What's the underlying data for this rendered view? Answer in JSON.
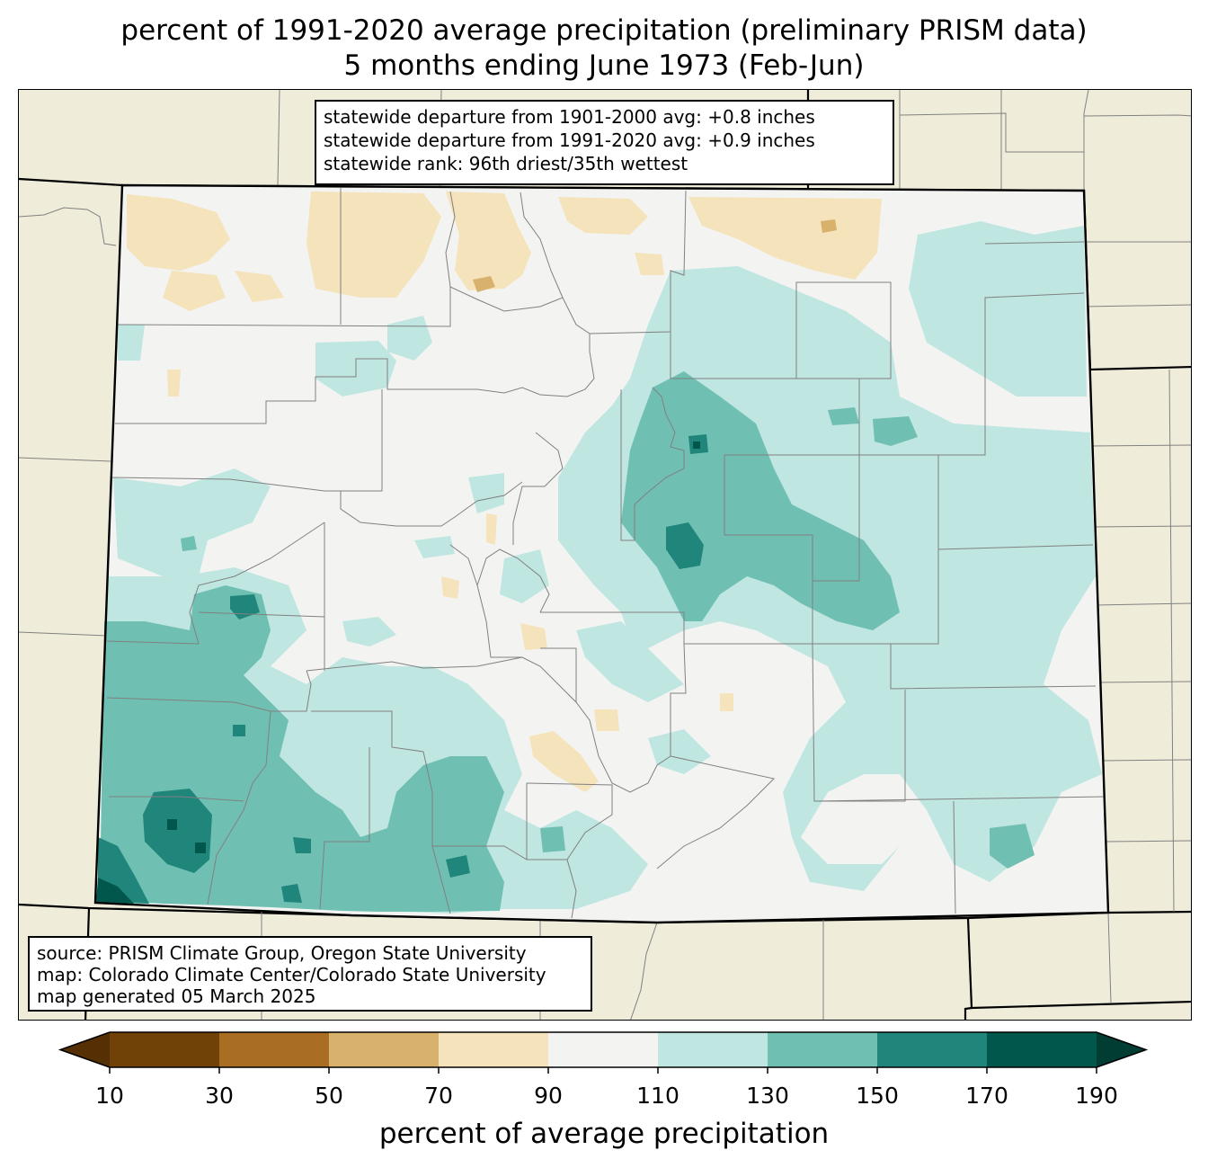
{
  "title": {
    "line1": "percent of 1991-2020 average precipitation (preliminary PRISM data)",
    "line2": "5 months ending June 1973 (Feb-Jun)"
  },
  "stats_box": {
    "line1": "statewide departure from 1901-2000 avg: +0.8 inches",
    "line2": "statewide departure from 1991-2020 avg: +0.9 inches",
    "line3": "statewide rank: 96th driest/35th wettest"
  },
  "source_box": {
    "line1": "source: PRISM Climate Group, Oregon State University",
    "line2": "map: Colorado Climate Center/Colorado State University",
    "line3": "map generated 05 March 2025"
  },
  "colorbar": {
    "label": "percent of average precipitation",
    "ticks": [
      "10",
      "30",
      "50",
      "70",
      "90",
      "110",
      "130",
      "150",
      "170",
      "190"
    ],
    "colors": [
      "#714207",
      "#a96d23",
      "#d8b26c",
      "#f4e3bb",
      "#f3f4f2",
      "#bfe6e0",
      "#6fc0b2",
      "#20857b",
      "#02574c"
    ],
    "under_color": "#553005",
    "over_color": "#013d33"
  },
  "map_colors": {
    "background": "#efedda",
    "state_fill": "#f3f4f2",
    "border": "#000000",
    "county_lines": "#808080"
  }
}
